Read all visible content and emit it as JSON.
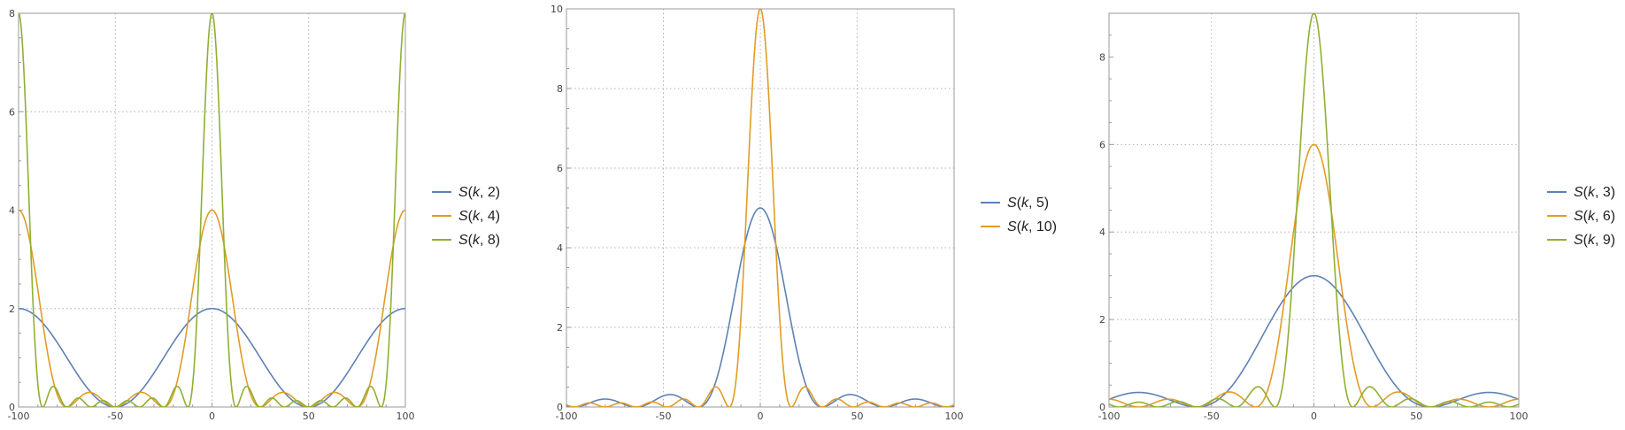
{
  "chart_data": [
    {
      "type": "line",
      "function": "S(k,N) = (sin(N*pi*k/100)/sin(pi*k/100))^2 / N",
      "xlim": [
        -100,
        100
      ],
      "ylim": [
        0,
        8
      ],
      "xticks": [
        -100,
        -50,
        0,
        50,
        100
      ],
      "xtick_labels": [
        "-100",
        "-50",
        "0",
        "50",
        "100"
      ],
      "yticks": [
        0,
        2,
        4,
        6,
        8
      ],
      "ytick_labels": [
        "0",
        "2",
        "4",
        "6",
        "8"
      ],
      "grid_x": [
        -50,
        0,
        50
      ],
      "grid_y": [
        2,
        6
      ],
      "grid": "dotted",
      "legend": "right",
      "series": [
        {
          "name": "S(k, 2)",
          "label_prefix": "S(",
          "label_var": "k",
          "label_suffix": ", 2)",
          "N": 2,
          "color": "#5E81B5"
        },
        {
          "name": "S(k, 4)",
          "label_prefix": "S(",
          "label_var": "k",
          "label_suffix": ", 4)",
          "N": 4,
          "color": "#E19C24"
        },
        {
          "name": "S(k, 8)",
          "label_prefix": "S(",
          "label_var": "k",
          "label_suffix": ", 8)",
          "N": 8,
          "color": "#8FB032"
        }
      ]
    },
    {
      "type": "line",
      "function": "S(k,N) = (sin(N*pi*k/160)/sin(pi*k/160))^2 / N",
      "xlim": [
        -100,
        100
      ],
      "ylim": [
        0,
        10
      ],
      "xticks": [
        -100,
        -50,
        0,
        50,
        100
      ],
      "xtick_labels": [
        "-100",
        "-50",
        "0",
        "50",
        "100"
      ],
      "yticks": [
        0,
        2,
        4,
        6,
        8,
        10
      ],
      "ytick_labels": [
        "0",
        "2",
        "4",
        "6",
        "8",
        "10"
      ],
      "grid_x": [
        -50,
        0,
        50
      ],
      "grid_y": [
        2,
        4,
        6,
        8
      ],
      "grid": "dotted",
      "legend": "right",
      "series": [
        {
          "name": "S(k, 5)",
          "label_prefix": "S(",
          "label_var": "k",
          "label_suffix": ", 5)",
          "N": 5,
          "color": "#5E81B5"
        },
        {
          "name": "S(k, 10)",
          "label_prefix": "S(",
          "label_var": "k",
          "label_suffix": ", 10)",
          "N": 10,
          "color": "#E19C24"
        }
      ]
    },
    {
      "type": "line",
      "function": "S(k,N) = (sin(N*pi*k/171)/sin(pi*k/171))^2 / N",
      "xlim": [
        -100,
        100
      ],
      "ylim": [
        0,
        9
      ],
      "xticks": [
        -100,
        -50,
        0,
        50,
        100
      ],
      "xtick_labels": [
        "-100",
        "-50",
        "0",
        "50",
        "100"
      ],
      "yticks": [
        0,
        2,
        4,
        6,
        8
      ],
      "ytick_labels": [
        "0",
        "2",
        "4",
        "6",
        "8"
      ],
      "grid_x": [
        -50,
        0,
        50
      ],
      "grid_y": [
        2,
        4,
        6
      ],
      "grid": "dotted",
      "legend": "right",
      "series": [
        {
          "name": "S(k, 3)",
          "label_prefix": "S(",
          "label_var": "k",
          "label_suffix": ", 3)",
          "N": 3,
          "color": "#5E81B5"
        },
        {
          "name": "S(k, 6)",
          "label_prefix": "S(",
          "label_var": "k",
          "label_suffix": ", 6)",
          "N": 6,
          "color": "#E19C24"
        },
        {
          "name": "S(k, 9)",
          "label_prefix": "S(",
          "label_var": "k",
          "label_suffix": ", 9)",
          "N": 9,
          "color": "#8FB032"
        }
      ]
    }
  ]
}
